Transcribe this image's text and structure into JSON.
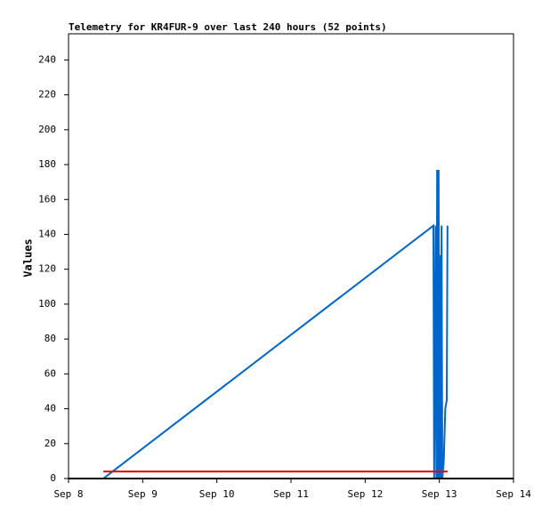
{
  "chart_data": {
    "type": "line",
    "title": "Telemetry for KR4FUR-9 over last 240 hours (52 points)",
    "y_label": "Values",
    "xlim": [
      8,
      14
    ],
    "xticks": [
      {
        "value": 8,
        "label": "Sep 8"
      },
      {
        "value": 9,
        "label": "Sep 9"
      },
      {
        "value": 10,
        "label": "Sep 10"
      },
      {
        "value": 11,
        "label": "Sep 11"
      },
      {
        "value": 12,
        "label": "Sep 12"
      },
      {
        "value": 13,
        "label": "Sep 13"
      },
      {
        "value": 14,
        "label": "Sep 14"
      }
    ],
    "ylim": [
      0,
      255
    ],
    "yticks": [
      0,
      20,
      40,
      60,
      80,
      100,
      120,
      140,
      160,
      180,
      200,
      220,
      240
    ],
    "series": [
      {
        "color": "#0066cc",
        "x": [
          8.47,
          12.92,
          12.93,
          12.95,
          12.96,
          12.97,
          12.98,
          12.99,
          13.0,
          13.01,
          13.02,
          13.03,
          13.04,
          13.06,
          13.08,
          13.1,
          13.11
        ],
        "values": [
          0,
          145,
          0,
          145,
          0,
          177,
          0,
          177,
          0,
          128,
          0,
          145,
          0,
          10,
          40,
          45,
          145
        ]
      },
      {
        "color": "#dd0000",
        "x": [
          8.47,
          13.11
        ],
        "values": [
          4,
          4
        ]
      }
    ]
  }
}
